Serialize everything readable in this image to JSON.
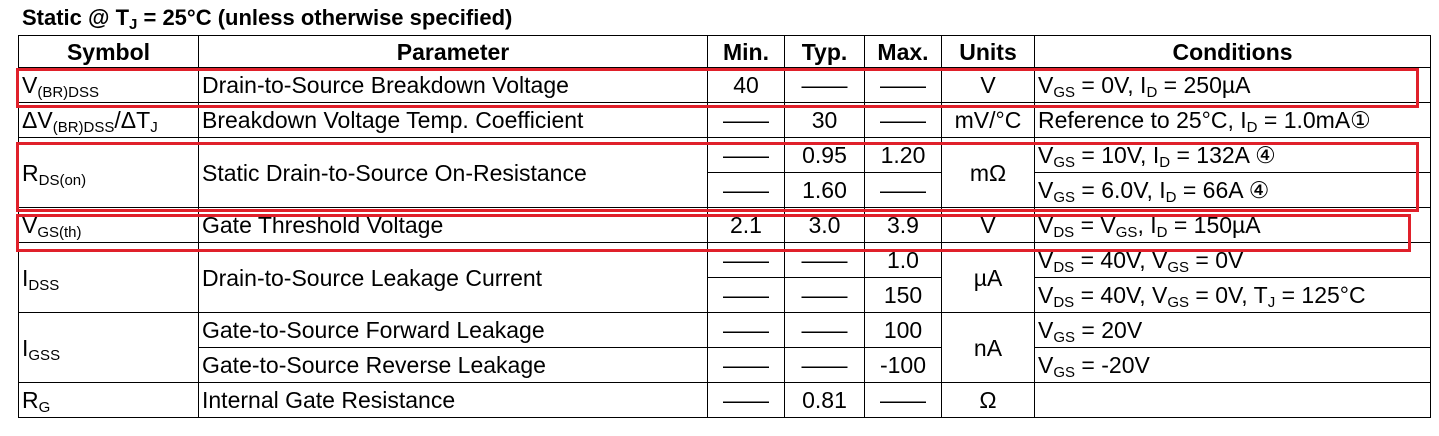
{
  "title_parts": [
    "Static @ T",
    "J",
    " = 25°C (unless otherwise specified)"
  ],
  "headers": {
    "symbol": "Symbol",
    "parameter": "Parameter",
    "min": "Min.",
    "typ": "Typ.",
    "max": "Max.",
    "units": "Units",
    "conditions": "Conditions"
  },
  "dash": "——",
  "rows": {
    "vbr": {
      "sym": [
        "V",
        "(BR)DSS"
      ],
      "param": "Drain-to-Source Breakdown Voltage",
      "min": "40",
      "units": "V",
      "cond": [
        "V",
        "GS",
        " = 0V, I",
        "D",
        " = 250µA"
      ]
    },
    "dvbr": {
      "sym": [
        "ΔV",
        "(BR)DSS",
        "/ΔT",
        "J"
      ],
      "param": "Breakdown Voltage Temp. Coefficient",
      "typ": "30",
      "units": "mV/°C",
      "cond": [
        "Reference to 25°C, I",
        "D",
        " = 1.0mA①"
      ]
    },
    "rds": {
      "sym": [
        "R",
        "DS(on)"
      ],
      "param": "Static Drain-to-Source On-Resistance",
      "typ1": "0.95",
      "max1": "1.20",
      "typ2": "1.60",
      "units": "mΩ",
      "cond1": [
        "V",
        "GS",
        " = 10V, I",
        "D",
        " = 132A ④"
      ],
      "cond2": [
        "V",
        "GS",
        " = 6.0V, I",
        "D",
        " = 66A ④"
      ]
    },
    "vgs": {
      "sym": [
        "V",
        "GS(th)"
      ],
      "param": "Gate Threshold Voltage",
      "min": "2.1",
      "typ": "3.0",
      "max": "3.9",
      "units": "V",
      "cond": [
        "V",
        "DS",
        " = V",
        "GS",
        ", I",
        "D",
        " = 150µA"
      ]
    },
    "idss": {
      "sym": [
        "I",
        "DSS"
      ],
      "param": "Drain-to-Source Leakage Current",
      "max1": "1.0",
      "max2": "150",
      "units": "µA",
      "cond1": [
        "V",
        "DS",
        " = 40V, V",
        "GS",
        " = 0V"
      ],
      "cond2": [
        "V",
        "DS",
        " = 40V, V",
        "GS",
        " = 0V, T",
        "J",
        " = 125°C"
      ]
    },
    "igss": {
      "sym": [
        "I",
        "GSS"
      ],
      "param1": "Gate-to-Source Forward Leakage",
      "param2": "Gate-to-Source Reverse Leakage",
      "max1": "100",
      "max2": "-100",
      "units": "nA",
      "cond1": [
        "V",
        "GS",
        " = 20V"
      ],
      "cond2": [
        "V",
        "GS",
        " = -20V"
      ]
    },
    "rg": {
      "sym": [
        "R",
        "G"
      ],
      "param": "Internal Gate Resistance",
      "typ": "0.81",
      "units": "Ω"
    }
  },
  "highlight_color": "#e0202a"
}
